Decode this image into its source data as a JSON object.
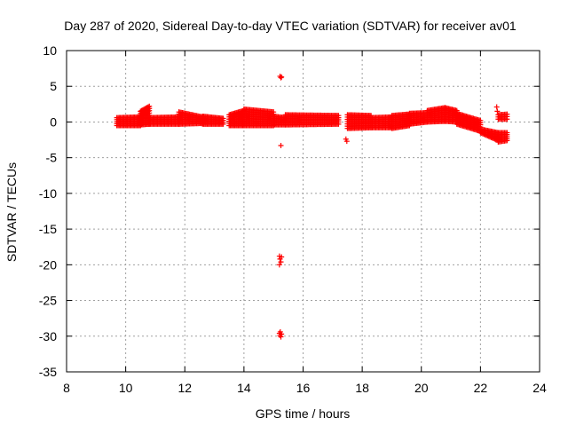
{
  "chart_data": {
    "type": "scatter",
    "title": "Day 287 of 2020, Sidereal Day-to-day VTEC variation (SDTVAR) for receiver av01",
    "xlabel": "GPS time / hours",
    "ylabel": "SDTVAR / TECUs",
    "xlim": [
      8,
      24
    ],
    "ylim": [
      -35,
      10
    ],
    "xticks": [
      8,
      10,
      12,
      14,
      16,
      18,
      20,
      22,
      24
    ],
    "yticks": [
      -35,
      -30,
      -25,
      -20,
      -15,
      -10,
      -5,
      0,
      5,
      10
    ],
    "grid": true,
    "marker": "+",
    "color": "#ff0000",
    "series": [
      {
        "name": "SDTVAR",
        "bands": [
          {
            "x": [
              9.7,
              10.5
            ],
            "y_low": [
              -0.5,
              -0.5
            ],
            "y_high": [
              0.6,
              0.7
            ]
          },
          {
            "x": [
              10.5,
              10.8
            ],
            "y_low": [
              -0.4,
              -0.3
            ],
            "y_high": [
              1.5,
              2.2
            ]
          },
          {
            "x": [
              10.8,
              11.8
            ],
            "y_low": [
              -0.3,
              -0.3
            ],
            "y_high": [
              0.6,
              0.7
            ]
          },
          {
            "x": [
              11.8,
              12.6
            ],
            "y_low": [
              -0.3,
              -0.2
            ],
            "y_high": [
              1.4,
              0.7
            ]
          },
          {
            "x": [
              12.6,
              13.3
            ],
            "y_low": [
              -0.3,
              -0.3
            ],
            "y_high": [
              0.8,
              0.5
            ]
          },
          {
            "x": [
              13.5,
              14.0
            ],
            "y_low": [
              -0.5,
              -0.5
            ],
            "y_high": [
              1.0,
              1.6
            ]
          },
          {
            "x": [
              14.0,
              15.0
            ],
            "y_low": [
              -0.5,
              -0.5
            ],
            "y_high": [
              1.8,
              1.4
            ]
          },
          {
            "x": [
              15.0,
              15.4
            ],
            "y_low": [
              -0.4,
              -0.4
            ],
            "y_high": [
              0.8,
              0.6
            ]
          },
          {
            "x": [
              15.4,
              17.2
            ],
            "y_low": [
              -0.4,
              -0.3
            ],
            "y_high": [
              1.0,
              0.9
            ]
          },
          {
            "x": [
              17.5,
              18.3
            ],
            "y_low": [
              -0.9,
              -0.8
            ],
            "y_high": [
              1.0,
              0.9
            ]
          },
          {
            "x": [
              18.3,
              19.0
            ],
            "y_low": [
              -0.8,
              -0.8
            ],
            "y_high": [
              0.6,
              0.7
            ]
          },
          {
            "x": [
              19.0,
              19.6
            ],
            "y_low": [
              -0.9,
              -0.5
            ],
            "y_high": [
              0.9,
              1.1
            ]
          },
          {
            "x": [
              19.6,
              20.2
            ],
            "y_low": [
              -0.3,
              0.0
            ],
            "y_high": [
              1.2,
              1.3
            ]
          },
          {
            "x": [
              20.2,
              20.8
            ],
            "y_low": [
              0.0,
              0.1
            ],
            "y_high": [
              1.6,
              2.0
            ]
          },
          {
            "x": [
              20.8,
              21.2
            ],
            "y_low": [
              0.1,
              0.0
            ],
            "y_high": [
              2.0,
              1.6
            ]
          },
          {
            "x": [
              21.2,
              22.0
            ],
            "y_low": [
              -0.3,
              -1.3
            ],
            "y_high": [
              1.2,
              0.2
            ]
          },
          {
            "x": [
              22.0,
              22.6
            ],
            "y_low": [
              -1.5,
              -2.6
            ],
            "y_high": [
              -1.0,
              -1.5
            ]
          },
          {
            "x": [
              22.6,
              22.9
            ],
            "y_low": [
              -2.8,
              -2.6
            ],
            "y_high": [
              -1.5,
              -1.5
            ]
          },
          {
            "x": [
              22.6,
              22.9
            ],
            "y_low": [
              0.4,
              0.4
            ],
            "y_high": [
              1.0,
              1.1
            ]
          }
        ],
        "points": [
          {
            "x": 22.55,
            "y": 2.1
          },
          {
            "x": 22.57,
            "y": 1.5
          },
          {
            "x": 15.22,
            "y": 6.4
          },
          {
            "x": 15.25,
            "y": 6.2
          },
          {
            "x": 15.27,
            "y": 6.3
          },
          {
            "x": 15.25,
            "y": -3.3
          },
          {
            "x": 15.2,
            "y": -18.8
          },
          {
            "x": 15.22,
            "y": -19.2
          },
          {
            "x": 15.25,
            "y": -19.6
          },
          {
            "x": 15.2,
            "y": -20.0
          },
          {
            "x": 15.27,
            "y": -18.9
          },
          {
            "x": 15.2,
            "y": -29.6
          },
          {
            "x": 15.22,
            "y": -29.9
          },
          {
            "x": 15.25,
            "y": -30.1
          },
          {
            "x": 15.27,
            "y": -29.7
          },
          {
            "x": 15.23,
            "y": -29.4
          },
          {
            "x": 17.45,
            "y": -2.4
          },
          {
            "x": 17.48,
            "y": -2.7
          }
        ]
      }
    ]
  }
}
